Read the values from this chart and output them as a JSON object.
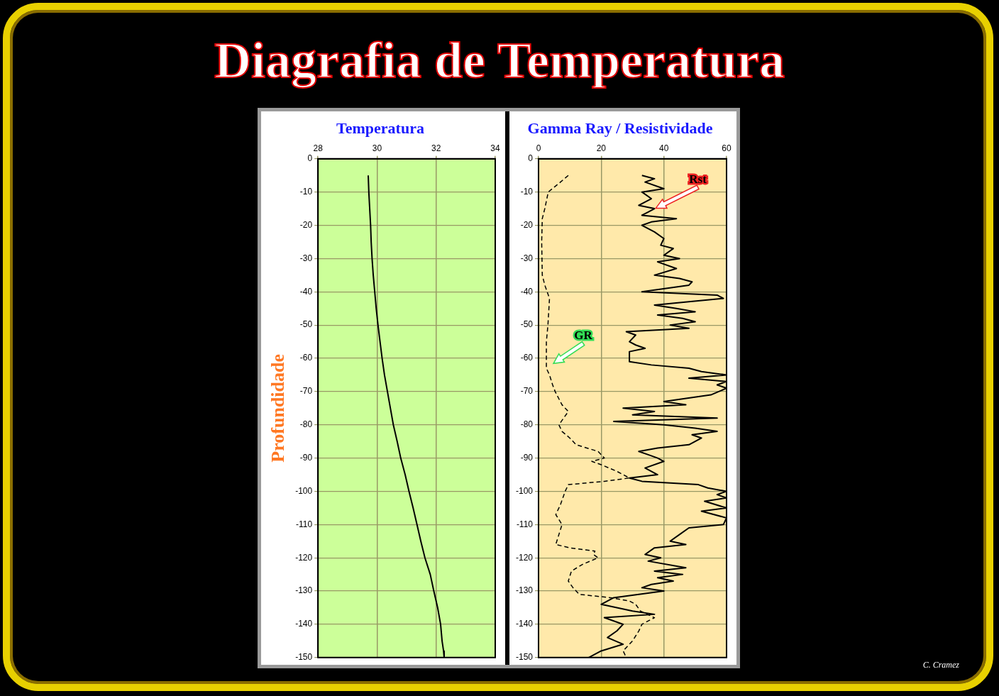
{
  "chart_data": [
    {
      "type": "line",
      "title": "Diagrafia de Temperatura",
      "subtitle": "Temperatura",
      "ylabel": "Profundidade",
      "xlim": [
        28,
        34
      ],
      "xticks": [
        28,
        30,
        32,
        34
      ],
      "ylim": [
        -150,
        0
      ],
      "yticks": [
        0,
        -10,
        -20,
        -30,
        -40,
        -50,
        -60,
        -70,
        -80,
        -90,
        -100,
        -110,
        -120,
        -130,
        -140,
        -150
      ],
      "grid": true,
      "legend": false,
      "marker": "none",
      "series": [
        {
          "color": "#000000",
          "line_style": "solid",
          "x": [
            29.7,
            29.72,
            29.75,
            29.78,
            29.8,
            29.83,
            29.87,
            29.92,
            29.97,
            30.03,
            30.1,
            30.17,
            30.25,
            30.35,
            30.45,
            30.55,
            30.68,
            30.8,
            30.95,
            31.08,
            31.22,
            31.35,
            31.48,
            31.62,
            31.8,
            31.92,
            32.05,
            32.15,
            32.2,
            32.25,
            32.27
          ],
          "values": [
            -5,
            -10,
            -15,
            -20,
            -25,
            -30,
            -35,
            -40,
            -45,
            -50,
            -55,
            -60,
            -65,
            -70,
            -75,
            -80,
            -85,
            -90,
            -95,
            -100,
            -105,
            -110,
            -115,
            -120,
            -125,
            -130,
            -135,
            -140,
            -145,
            -148,
            -150
          ]
        }
      ]
    },
    {
      "type": "line",
      "title": "Gamma Ray / Resistividade",
      "xlim": [
        0,
        60
      ],
      "xticks": [
        0,
        20,
        40,
        60
      ],
      "ylim": [
        -150,
        0
      ],
      "yticks": [
        0,
        -10,
        -20,
        -30,
        -40,
        -50,
        -60,
        -70,
        -80,
        -90,
        -100,
        -110,
        -120,
        -130,
        -140,
        -150
      ],
      "grid": true,
      "legend": false,
      "marker": "none",
      "annotations": [
        "C. Cramez"
      ],
      "series": [
        {
          "name": "GR",
          "color": "#000000",
          "line_style": "dashed",
          "x": [
            9.5,
            7,
            3.1,
            2,
            1.2,
            1,
            1.2,
            2,
            3.5,
            3,
            2.5,
            2.5,
            2.5,
            3.5,
            4.5,
            5.3,
            7.5,
            9.5,
            8,
            6.5,
            7.5,
            10,
            12,
            19,
            21,
            17,
            20,
            25,
            29,
            21,
            9.5,
            8.5,
            7,
            5.5,
            7.5,
            6.5,
            5.5,
            10,
            18,
            17.5,
            19,
            14,
            10.5,
            9.5,
            11,
            13,
            23,
            29,
            31,
            32.5,
            37,
            33,
            32,
            30,
            27,
            28
          ],
          "values": [
            -5,
            -7,
            -10,
            -15,
            -18,
            -25,
            -35,
            -38,
            -42,
            -50,
            -55,
            -60,
            -63,
            -65,
            -68,
            -70,
            -74,
            -76,
            -78,
            -80,
            -82,
            -84,
            -86,
            -88,
            -90,
            -91,
            -92,
            -94,
            -96,
            -97,
            -98,
            -100,
            -104,
            -107,
            -110,
            -113,
            -116,
            -117,
            -118,
            -119,
            -120,
            -122,
            -124,
            -127,
            -129,
            -131,
            -132,
            -133,
            -134,
            -136,
            -138,
            -140,
            -142,
            -145,
            -148,
            -150
          ]
        },
        {
          "name": "Rst",
          "color": "#000000",
          "line_style": "solid",
          "x": [
            33,
            37,
            34,
            40,
            33,
            36,
            32,
            37,
            35,
            33,
            44,
            36,
            33,
            37,
            40,
            39,
            43,
            40,
            45,
            38,
            44,
            37,
            45,
            49,
            48,
            33,
            57,
            59,
            48,
            37,
            44,
            50,
            38,
            46,
            50,
            42,
            48,
            28,
            31,
            29,
            31,
            34,
            29,
            29,
            36,
            48,
            52,
            60,
            48,
            60,
            57,
            60,
            55,
            40,
            47,
            27,
            37,
            30,
            57,
            24,
            40,
            50,
            57,
            49,
            52,
            48,
            38,
            32,
            35,
            38,
            40,
            34,
            38,
            29,
            33,
            51,
            54,
            60,
            57,
            60,
            53,
            60,
            52,
            60,
            59,
            48,
            45,
            42,
            47,
            37,
            34,
            39,
            35,
            47,
            37,
            46,
            38,
            43,
            36,
            33,
            40,
            24,
            20,
            30,
            37,
            21,
            27,
            25,
            22,
            27,
            20,
            16
          ],
          "values": [
            -5,
            -6,
            -7,
            -9,
            -10,
            -12,
            -14,
            -15,
            -16,
            -17,
            -18,
            -19,
            -20,
            -22,
            -24,
            -26,
            -27,
            -29,
            -30,
            -31,
            -33,
            -35,
            -36,
            -37,
            -38,
            -40,
            -41,
            -42,
            -43,
            -44,
            -45,
            -46,
            -47,
            -48,
            -49,
            -50,
            -51,
            -52,
            -53,
            -55,
            -56,
            -57,
            -58,
            -61,
            -62,
            -63,
            -64,
            -65,
            -66,
            -67,
            -68,
            -69,
            -71,
            -73,
            -74,
            -75,
            -76,
            -77,
            -78,
            -79,
            -80,
            -81,
            -82,
            -83,
            -84,
            -86,
            -87,
            -88,
            -89,
            -90,
            -91,
            -93,
            -95,
            -96,
            -97,
            -98,
            -99,
            -100,
            -101,
            -102,
            -103,
            -105,
            -106,
            -108,
            -110,
            -111,
            -113,
            -115,
            -116,
            -117,
            -119,
            -120,
            -121,
            -123,
            -124,
            -125,
            -126,
            -127,
            -128,
            -129,
            -130,
            -132,
            -134,
            -136,
            -137,
            -138,
            -140,
            -142,
            -144,
            -146,
            -148,
            -150
          ]
        }
      ]
    }
  ]
}
